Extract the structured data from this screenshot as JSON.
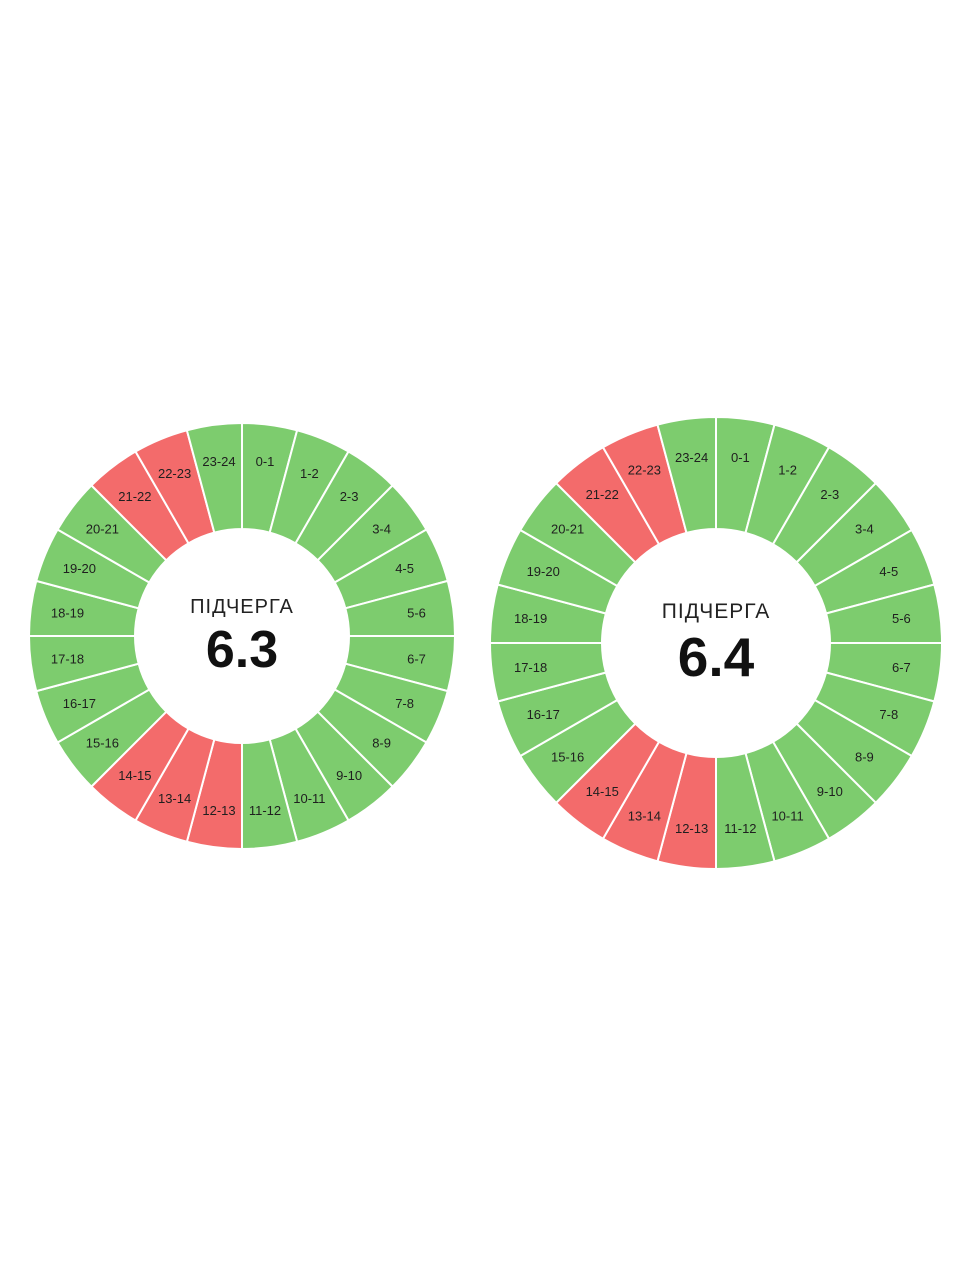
{
  "colors": {
    "on": "#7dcc6e",
    "off": "#f36b6b",
    "divider": "#ffffff",
    "background": "#ffffff"
  },
  "chart_data": [
    {
      "type": "pie",
      "caption": "ПІДЧЕРГА",
      "value_label": "6.3",
      "slot_order": "clockwise from top",
      "slots": [
        {
          "label": "0-1",
          "status": "on"
        },
        {
          "label": "1-2",
          "status": "on"
        },
        {
          "label": "2-3",
          "status": "on"
        },
        {
          "label": "3-4",
          "status": "on"
        },
        {
          "label": "4-5",
          "status": "on"
        },
        {
          "label": "5-6",
          "status": "on"
        },
        {
          "label": "6-7",
          "status": "on"
        },
        {
          "label": "7-8",
          "status": "on"
        },
        {
          "label": "8-9",
          "status": "on"
        },
        {
          "label": "9-10",
          "status": "on"
        },
        {
          "label": "10-11",
          "status": "on"
        },
        {
          "label": "11-12",
          "status": "on"
        },
        {
          "label": "12-13",
          "status": "off"
        },
        {
          "label": "13-14",
          "status": "off"
        },
        {
          "label": "14-15",
          "status": "off"
        },
        {
          "label": "15-16",
          "status": "on"
        },
        {
          "label": "16-17",
          "status": "on"
        },
        {
          "label": "17-18",
          "status": "on"
        },
        {
          "label": "18-19",
          "status": "on"
        },
        {
          "label": "19-20",
          "status": "on"
        },
        {
          "label": "20-21",
          "status": "on"
        },
        {
          "label": "21-22",
          "status": "off"
        },
        {
          "label": "22-23",
          "status": "off"
        },
        {
          "label": "23-24",
          "status": "on"
        }
      ]
    },
    {
      "type": "pie",
      "caption": "ПІДЧЕРГА",
      "value_label": "6.4",
      "slot_order": "clockwise from top",
      "slots": [
        {
          "label": "0-1",
          "status": "on"
        },
        {
          "label": "1-2",
          "status": "on"
        },
        {
          "label": "2-3",
          "status": "on"
        },
        {
          "label": "3-4",
          "status": "on"
        },
        {
          "label": "4-5",
          "status": "on"
        },
        {
          "label": "5-6",
          "status": "on"
        },
        {
          "label": "6-7",
          "status": "on"
        },
        {
          "label": "7-8",
          "status": "on"
        },
        {
          "label": "8-9",
          "status": "on"
        },
        {
          "label": "9-10",
          "status": "on"
        },
        {
          "label": "10-11",
          "status": "on"
        },
        {
          "label": "11-12",
          "status": "on"
        },
        {
          "label": "12-13",
          "status": "off"
        },
        {
          "label": "13-14",
          "status": "off"
        },
        {
          "label": "14-15",
          "status": "off"
        },
        {
          "label": "15-16",
          "status": "on"
        },
        {
          "label": "16-17",
          "status": "on"
        },
        {
          "label": "17-18",
          "status": "on"
        },
        {
          "label": "18-19",
          "status": "on"
        },
        {
          "label": "19-20",
          "status": "on"
        },
        {
          "label": "20-21",
          "status": "on"
        },
        {
          "label": "21-22",
          "status": "off"
        },
        {
          "label": "22-23",
          "status": "off"
        },
        {
          "label": "23-24",
          "status": "on"
        }
      ]
    }
  ]
}
